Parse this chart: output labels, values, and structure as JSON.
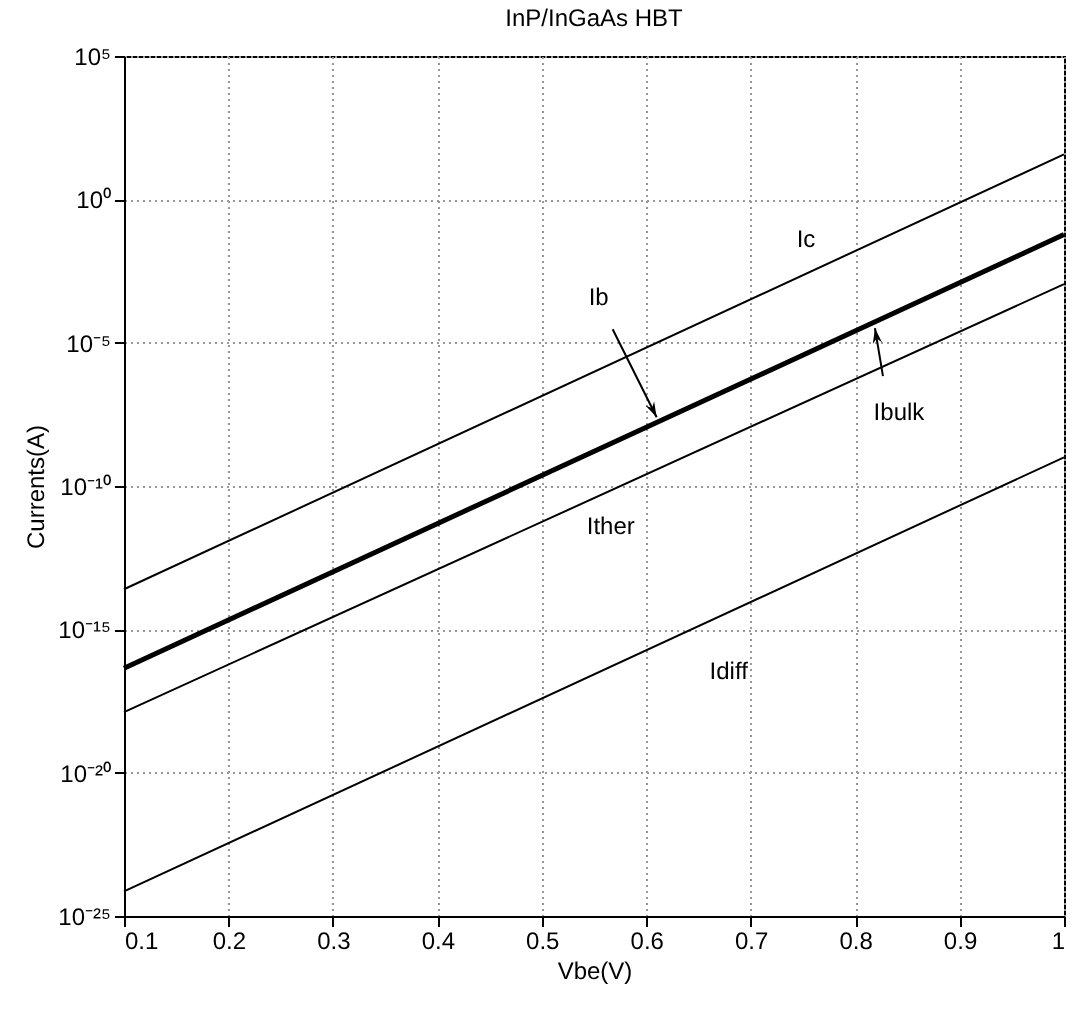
{
  "chart_data": {
    "type": "line",
    "title": "InP/InGaAs HBT",
    "xlabel": "Vbe(V)",
    "ylabel": "Currents(A)",
    "log": "y",
    "grid": true,
    "marker": "none",
    "line_style": "solid",
    "xlim": [
      0.1,
      1
    ],
    "xticks": [
      0.1,
      0.2,
      0.3,
      0.4,
      0.5,
      0.6,
      0.7,
      0.8,
      0.9,
      1
    ],
    "ylim": [
      1e-25,
      100000.0
    ],
    "yticks": [
      {
        "value": 1e-25,
        "label": "10⁻²⁵"
      },
      {
        "value": 1e-20,
        "label": "10⁻²⁰"
      },
      {
        "value": 1e-15,
        "label": "10⁻¹⁵"
      },
      {
        "value": 1e-10,
        "label": "10⁻¹⁰"
      },
      {
        "value": 1e-05,
        "label": "10⁻⁵"
      },
      {
        "value": 1,
        "label": "10⁰"
      },
      {
        "value": 100000.0,
        "label": "10⁵"
      }
    ],
    "x": [
      0.1,
      1
    ],
    "series": [
      {
        "color": "#000000",
        "values": [
          2.5e-14,
          37
        ]
      },
      {
        "color": "#000000",
        "values": [
          4.4e-17,
          0.059
        ]
      },
      {
        "color": "#000000",
        "values": [
          1.3e-18,
          0.0011
        ]
      },
      {
        "color": "#000000",
        "values": [
          7.2e-25,
          1e-09
        ]
      }
    ],
    "annotations": [
      {
        "text": "Ic",
        "x": 0.753,
        "y": 0.0026
      },
      {
        "text": "Ib",
        "x": 0.61,
        "y": 2.5e-08
      },
      {
        "text": "Ibulk",
        "x": 0.819,
        "y": 3.2e-05
      },
      {
        "text": "Ither",
        "x": 0.566,
        "y": 7e-11
      },
      {
        "text": "Idiff",
        "x": 0.679,
        "y": 4.2e-15
      }
    ]
  }
}
